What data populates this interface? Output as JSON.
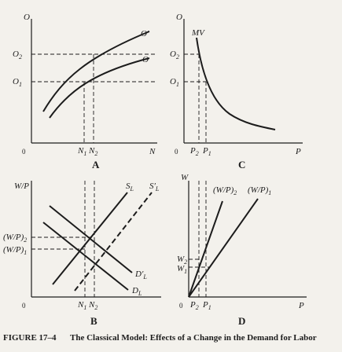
{
  "panels": {
    "A": {
      "letter": "A",
      "y_axis": "O",
      "x_axis": "N",
      "origin": "0",
      "curve_new": "O′",
      "curve_old": "O",
      "y_ticks": [
        "O",
        "2",
        "O",
        "1"
      ],
      "x_ticks": [
        "N",
        "1",
        "N",
        "2"
      ]
    },
    "B": {
      "letter": "B",
      "y_axis": "W/P",
      "x_axis": "",
      "origin": "0",
      "supply": "S",
      "supply_sub": "L",
      "supply_new": "S′",
      "supply_new_sub": "L",
      "demand": "D",
      "demand_sub": "L",
      "demand_new": "D′",
      "demand_new_sub": "L",
      "wage_2": "(W/P)",
      "wage_2_sub": "2",
      "wage_1": "(W/P)",
      "wage_1_sub": "1",
      "x_ticks": [
        "N",
        "1",
        "N",
        "2"
      ]
    },
    "C": {
      "letter": "C",
      "y_axis": "O",
      "x_axis": "P",
      "origin": "0",
      "curve": "MV",
      "y_ticks": [
        "O",
        "2",
        "O",
        "1"
      ],
      "x_ticks": [
        "P",
        "2",
        "P",
        "1"
      ]
    },
    "D": {
      "letter": "D",
      "y_axis": "W",
      "x_axis": "P",
      "origin": "0",
      "line_2": "(W/P)",
      "line_2_sub": "2",
      "line_1": "(W/P)",
      "line_1_sub": "1",
      "y_ticks": [
        "W",
        "2",
        "W",
        "1"
      ],
      "x_ticks": [
        "P",
        "2",
        "P",
        "1"
      ]
    }
  },
  "caption": {
    "figure": "FIGURE 17–4",
    "title": "The Classical Model: Effects of a Change in the Demand for Labor"
  }
}
